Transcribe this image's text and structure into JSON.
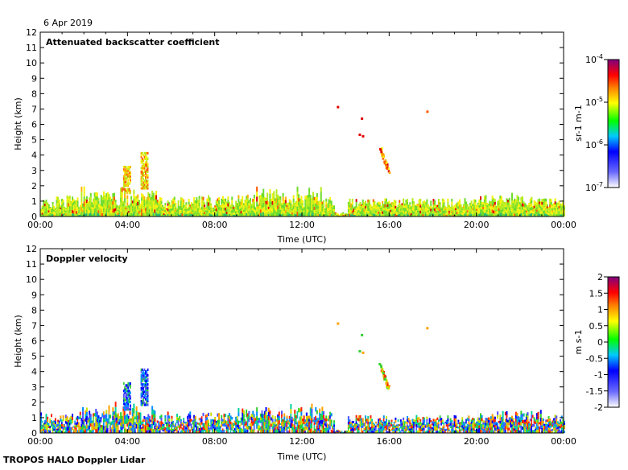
{
  "date": "6 Apr 2019",
  "footer": "TROPOS HALO Doppler Lidar",
  "chart_data": [
    {
      "type": "heatmap",
      "title": "Attenuated backscatter coefficient",
      "xlabel": "Time (UTC)",
      "ylabel": "Height (km)",
      "xticks": [
        "00:00",
        "04:00",
        "08:00",
        "12:00",
        "16:00",
        "20:00",
        "00:00"
      ],
      "yticks": [
        "0",
        "1",
        "2",
        "3",
        "4",
        "5",
        "6",
        "7",
        "8",
        "9",
        "10",
        "11",
        "12"
      ],
      "xlim_hours": [
        0,
        24
      ],
      "ylim_km": [
        0,
        12
      ],
      "colorbar": {
        "unit": "sr-1 m-1",
        "scale": "log",
        "ticks": [
          "10-7",
          "10-6",
          "10-5",
          "10-4"
        ],
        "tick_values": [
          1e-07,
          1e-06,
          1e-05,
          0.0001
        ],
        "colors": [
          "#ffffff",
          "#0000ff",
          "#00c8ff",
          "#00ff00",
          "#ffff00",
          "#ff8000",
          "#ff0000",
          "#800080"
        ]
      },
      "features": [
        {
          "time_hours": 3.9,
          "top_km": 3.2,
          "note": "aerosol plume"
        },
        {
          "time_hours": 4.8,
          "top_km": 4.1,
          "note": "aerosol plume"
        },
        {
          "time_hours": 15.6,
          "top_km": 4.5,
          "note": "falling streak"
        },
        {
          "time_hours": 13.6,
          "top_km": 7.2,
          "note": "high cloud fragment"
        },
        {
          "time_hours": 14.7,
          "top_km": 5.4,
          "note": "cloud fragment"
        }
      ]
    },
    {
      "type": "heatmap",
      "title": "Doppler velocity",
      "xlabel": "Time (UTC)",
      "ylabel": "Height (km)",
      "xticks": [
        "00:00",
        "04:00",
        "08:00",
        "12:00",
        "16:00",
        "20:00",
        "00:00"
      ],
      "yticks": [
        "0",
        "1",
        "2",
        "3",
        "4",
        "5",
        "6",
        "7",
        "8",
        "9",
        "10",
        "11",
        "12"
      ],
      "xlim_hours": [
        0,
        24
      ],
      "ylim_km": [
        0,
        12
      ],
      "colorbar": {
        "unit": "m s-1",
        "scale": "linear",
        "ticks": [
          "2",
          "1.5",
          "1",
          "0.5",
          "0",
          "-0.5",
          "-1",
          "-1.5",
          "-2"
        ],
        "tick_values": [
          2,
          1.5,
          1,
          0.5,
          0,
          -0.5,
          -1,
          -1.5,
          -2
        ],
        "colors": [
          "#ffffff",
          "#0000ff",
          "#00c8ff",
          "#00ff00",
          "#ffff00",
          "#ff8000",
          "#ff0000",
          "#800080"
        ]
      }
    }
  ]
}
